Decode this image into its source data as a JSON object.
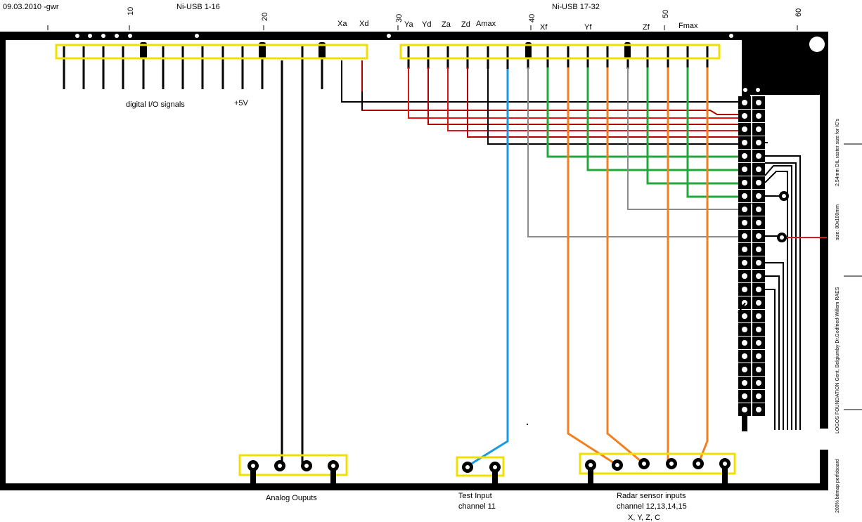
{
  "header": {
    "date": "09.03.2010 -gwr",
    "usb_left": "Ni-USB 1-16",
    "usb_right": "Ni-USB 17-32"
  },
  "ruler": {
    "r10": "10",
    "r20": "20",
    "r30": "30",
    "r40": "40",
    "r50": "50",
    "r60": "60"
  },
  "signals": {
    "xa": "Xa",
    "xd": "Xd",
    "ya": "Ya",
    "yd": "Yd",
    "za": "Za",
    "zd": "Zd",
    "amax": "Amax",
    "xf": "Xf",
    "yf": "Yf",
    "zf": "Zf",
    "fmax": "Fmax"
  },
  "board": {
    "digital_io": "digital I/O signals",
    "plus5v": "+5V"
  },
  "bottom": {
    "analog": "Analog Ouputs",
    "test_line1": "Test Input",
    "test_line2": "channel 11",
    "radar_line1": "Radar sensor inputs",
    "radar_line2": "channel 12,13,14,15",
    "radar_line3": "X, Y, Z, C"
  },
  "side_text": {
    "dil": "2,54mm DIL raster size for IC's",
    "size": "size: 80x100mm",
    "author": "by Dr.Godfried-Willem RAES",
    "foundation": "LOGOS FOUNDATION Gent, Belgium",
    "stripboard": "200% bitmap perfoboard"
  },
  "colors": {
    "black": "#000000",
    "red": "#e01515",
    "darkred": "#b00000",
    "blue": "#1a9ae0",
    "grey": "#8c8c8c",
    "green": "#22a83a",
    "orange": "#f28020",
    "highlight": "#f0e000"
  }
}
